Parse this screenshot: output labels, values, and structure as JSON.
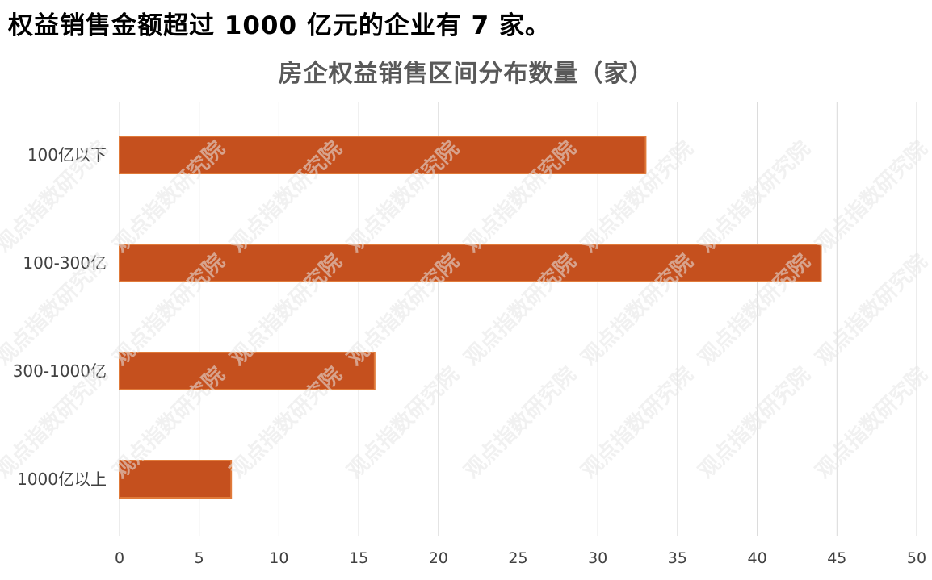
{
  "headline": "权益销售金额超过 1000 亿元的企业有 7 家。",
  "chart_data": {
    "type": "bar",
    "orientation": "horizontal",
    "title": "房企权益销售区间分布数量（家）",
    "categories": [
      "100亿以下",
      "100-300亿",
      "300-1000亿",
      "1000亿以上"
    ],
    "values": [
      33,
      44,
      16,
      7
    ],
    "xlim": [
      0,
      50
    ],
    "x_ticks": [
      0,
      5,
      10,
      15,
      20,
      25,
      30,
      35,
      40,
      45,
      50
    ],
    "grid": "vertical",
    "legend": "none",
    "bar_color": "#c5501e",
    "bar_edge_color": "#e07a3a"
  },
  "watermark": {
    "text": "观点指数研究院"
  }
}
